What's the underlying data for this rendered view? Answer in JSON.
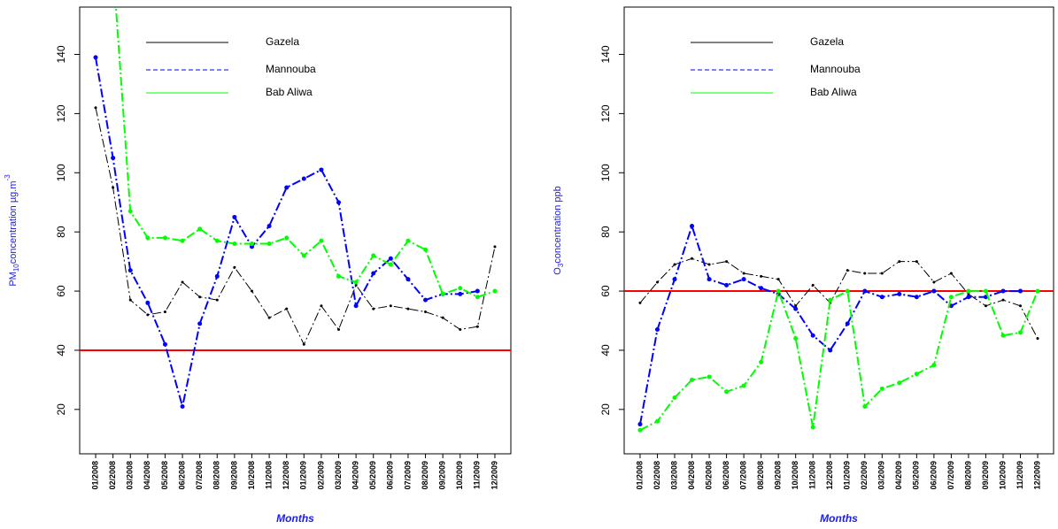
{
  "chart_data": [
    {
      "type": "line",
      "y_label": [
        "PM",
        "10",
        "concentration µg.m",
        "-3"
      ],
      "x_label": "Months",
      "categories": [
        "01/2008",
        "02/2008",
        "03/2008",
        "04/2008",
        "05/2008",
        "06/2008",
        "07/2008",
        "08/2008",
        "09/2008",
        "10/2008",
        "11/2008",
        "12/2008",
        "01/2009",
        "02/2009",
        "03/2009",
        "04/2009",
        "05/2009",
        "06/2009",
        "07/2009",
        "08/2009",
        "09/2009",
        "10/2009",
        "11/2009",
        "12/2009"
      ],
      "series": [
        {
          "name": "Gazela",
          "color": "#000000",
          "values": [
            122,
            95,
            57,
            52,
            53,
            63,
            58,
            57,
            68,
            60,
            51,
            54,
            42,
            55,
            47,
            62,
            54,
            55,
            54,
            53,
            51,
            47,
            48,
            75
          ]
        },
        {
          "name": "Mannouba",
          "color": "#0000ff",
          "values": [
            139,
            105,
            67,
            56,
            42,
            21,
            49,
            65,
            85,
            75,
            82,
            95,
            98,
            101,
            90,
            55,
            66,
            71,
            64,
            57,
            59,
            59,
            60,
            null
          ]
        },
        {
          "name": "Bab Aliwa",
          "color": "#00ff00",
          "values": [
            null,
            170,
            87,
            78,
            78,
            77,
            81,
            77,
            76,
            76,
            76,
            78,
            72,
            77,
            65,
            63,
            72,
            69,
            77,
            74,
            59,
            61,
            58,
            60
          ]
        }
      ],
      "threshold": 40,
      "threshold_color": "#ff0000",
      "ylim": [
        5,
        156
      ],
      "yticks": [
        20,
        40,
        60,
        80,
        100,
        120,
        140
      ]
    },
    {
      "type": "line",
      "y_label": [
        "O",
        "3",
        "concentration ppb"
      ],
      "x_label": "Months",
      "categories": [
        "01/2008",
        "02/2008",
        "03/2008",
        "04/2008",
        "05/2008",
        "06/2008",
        "07/2008",
        "08/2008",
        "09/2008",
        "10/2008",
        "11/2008",
        "12/2008",
        "01/2009",
        "02/2009",
        "03/2009",
        "04/2009",
        "05/2009",
        "06/2009",
        "07/2009",
        "08/2009",
        "09/2009",
        "10/2009",
        "11/2009",
        "12/2009"
      ],
      "series": [
        {
          "name": "Gazela",
          "color": "#000000",
          "values": [
            56,
            63,
            69,
            71,
            69,
            70,
            66,
            65,
            64,
            55,
            62,
            56,
            67,
            66,
            66,
            70,
            70,
            63,
            66,
            59,
            55,
            57,
            55,
            44
          ]
        },
        {
          "name": "Mannouba",
          "color": "#0000ff",
          "values": [
            15,
            47,
            64,
            82,
            64,
            62,
            64,
            61,
            59,
            54,
            45,
            40,
            49,
            60,
            58,
            59,
            58,
            60,
            55,
            58,
            58,
            60,
            60,
            null
          ]
        },
        {
          "name": "Bab Aliwa",
          "color": "#00ff00",
          "values": [
            13,
            16,
            24,
            30,
            31,
            26,
            28,
            36,
            60,
            44,
            14,
            57,
            60,
            21,
            27,
            29,
            32,
            35,
            58,
            60,
            60,
            45,
            46,
            60
          ]
        }
      ],
      "threshold": 60,
      "threshold_color": "#ff0000",
      "ylim": [
        5,
        156
      ],
      "yticks": [
        20,
        40,
        60,
        80,
        100,
        120,
        140
      ]
    }
  ]
}
